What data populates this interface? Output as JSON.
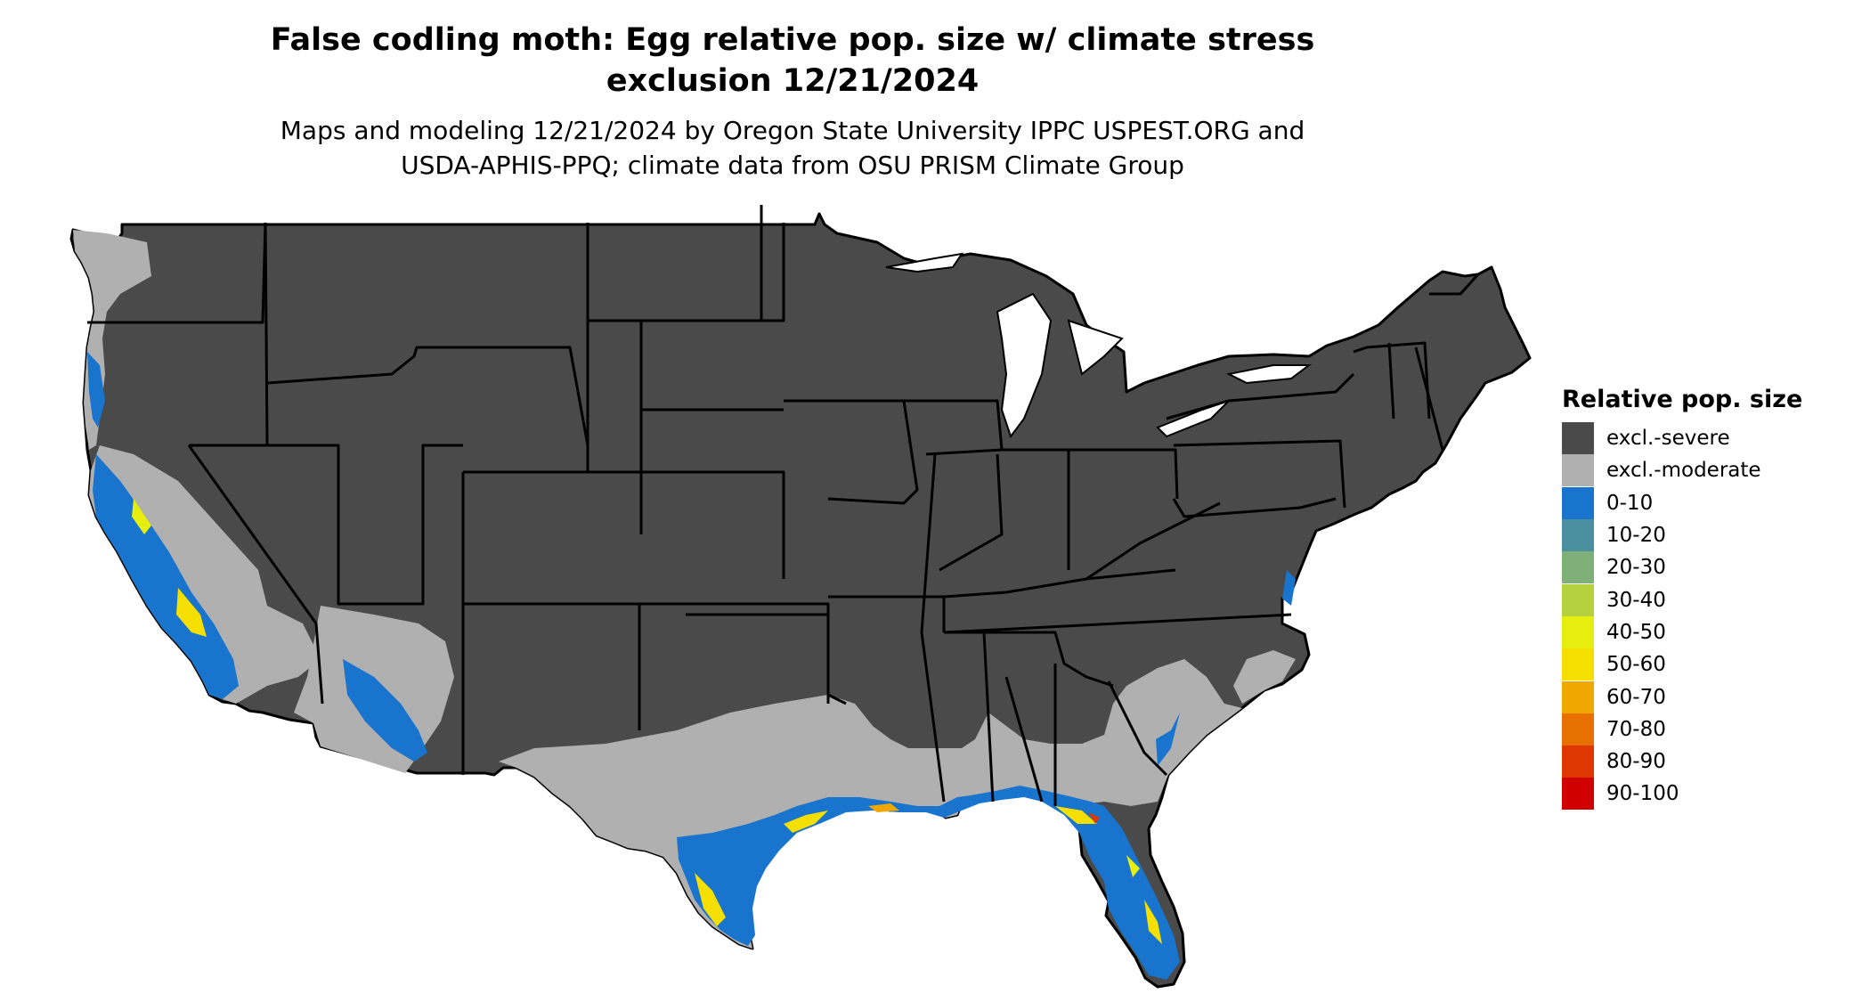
{
  "title": {
    "line1": "False codling moth: Egg relative pop. size w/ climate stress",
    "line2": "exclusion 12/21/2024"
  },
  "subtitle": {
    "line1": "Maps and modeling 12/21/2024 by Oregon State University IPPC USPEST.ORG and",
    "line2": "USDA-APHIS-PPQ; climate data from OSU PRISM Climate Group"
  },
  "legend": {
    "title": "Relative pop. size",
    "items": [
      {
        "label": "excl.-severe",
        "color": "#4a4a4a"
      },
      {
        "label": "excl.-moderate",
        "color": "#b0b0b0"
      },
      {
        "label": "0-10",
        "color": "#1874cd"
      },
      {
        "label": "10-20",
        "color": "#4a90a0"
      },
      {
        "label": "20-30",
        "color": "#7fb077"
      },
      {
        "label": "30-40",
        "color": "#b5d13d"
      },
      {
        "label": "40-50",
        "color": "#e6ee10"
      },
      {
        "label": "50-60",
        "color": "#f5df00"
      },
      {
        "label": "60-70",
        "color": "#f0a800"
      },
      {
        "label": "70-80",
        "color": "#e87000"
      },
      {
        "label": "80-90",
        "color": "#dc3800"
      },
      {
        "label": "90-100",
        "color": "#d00000"
      }
    ]
  }
}
